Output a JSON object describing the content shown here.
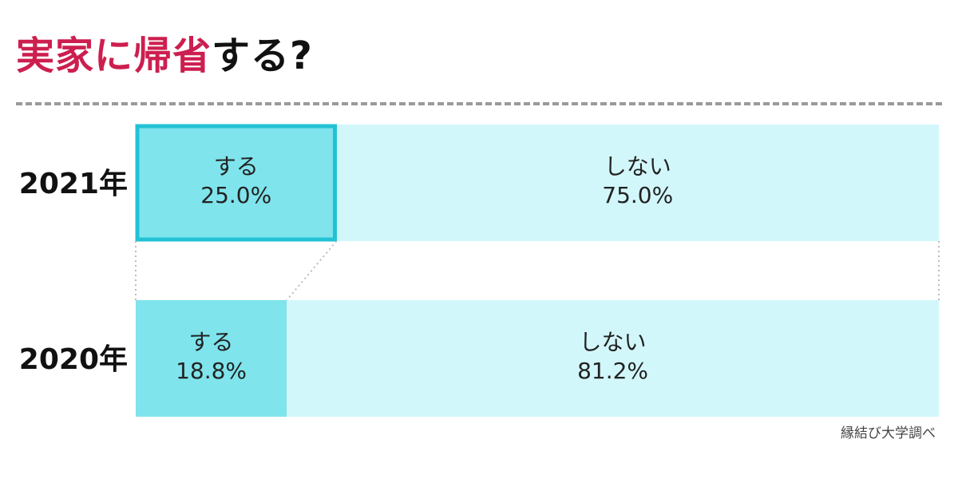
{
  "title": {
    "accent": "実家に帰省",
    "rest": "する?"
  },
  "source": "縁結び大学調べ",
  "colors": {
    "title_accent": "#cc1f4f",
    "suru_fill": "#7fe4ec",
    "shinai_fill": "#d2f7fa",
    "highlight_border": "#22c2d4"
  },
  "chart_data": {
    "type": "bar",
    "orientation": "horizontal-stacked-100",
    "categories": [
      "2021年",
      "2020年"
    ],
    "series": [
      {
        "name": "する",
        "values": [
          25.0,
          18.8
        ],
        "labels": [
          "25.0%",
          "18.8%"
        ]
      },
      {
        "name": "しない",
        "values": [
          75.0,
          81.2
        ],
        "labels": [
          "75.0%",
          "81.2%"
        ]
      }
    ],
    "xlim": [
      0,
      100
    ],
    "grid": false,
    "highlight": {
      "category": "2021年",
      "series": "する"
    }
  }
}
